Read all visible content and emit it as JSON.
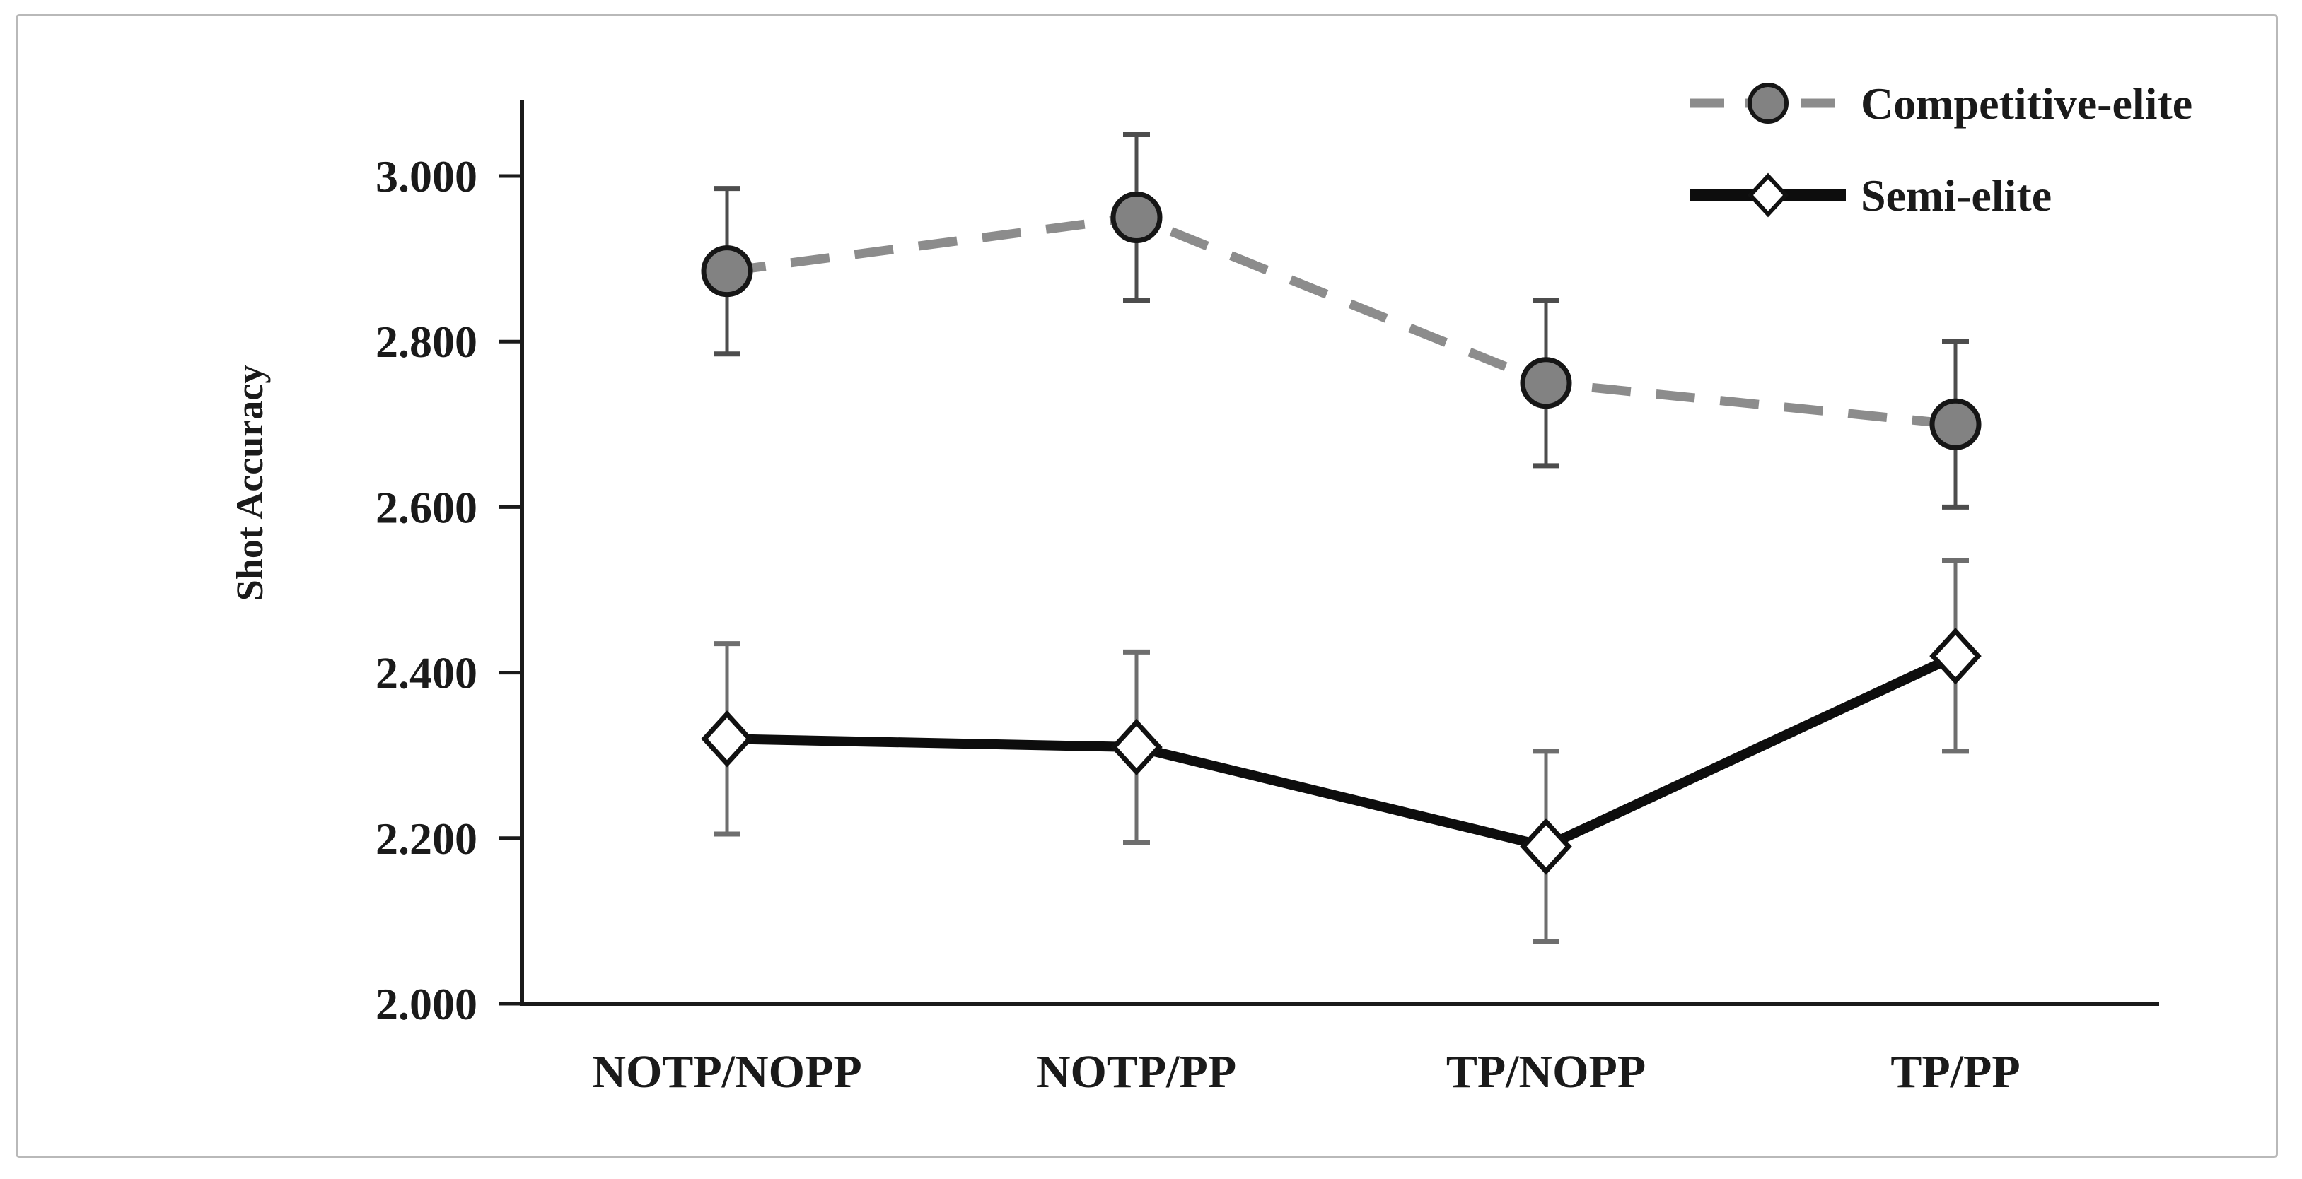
{
  "figure": {
    "background": "#ffffff",
    "border_color": "#b9b9b9"
  },
  "chart_data": {
    "type": "line",
    "title": "",
    "xlabel": "",
    "ylabel": "Shot Accuracy",
    "categories": [
      "NOTP/NOPP",
      "NOTP/PP",
      "TP/NOPP",
      "TP/PP"
    ],
    "series": [
      {
        "name": "Competitive-elite",
        "values": [
          2.885,
          2.95,
          2.75,
          2.7
        ],
        "error": [
          0.1,
          0.1,
          0.1,
          0.1
        ],
        "line_style": "dashed",
        "line_color": "#8c8c8c",
        "marker": "circle",
        "marker_fill": "#828282",
        "marker_stroke": "#161616",
        "error_color": "#4d4d4d"
      },
      {
        "name": "Semi-elite",
        "values": [
          2.32,
          2.31,
          2.19,
          2.42
        ],
        "error": [
          0.115,
          0.115,
          0.115,
          0.115
        ],
        "line_style": "solid",
        "line_color": "#0d0d0d",
        "marker": "diamond",
        "marker_fill": "#ffffff",
        "marker_stroke": "#111111",
        "error_color": "#6e6e6e"
      }
    ],
    "ylim": [
      2.0,
      3.0
    ],
    "ytick_step": 0.2,
    "ytick_labels": [
      "2.000",
      "2.200",
      "2.400",
      "2.600",
      "2.800",
      "3.000"
    ],
    "grid": false,
    "legend_position": "top-right",
    "axis_color": "#1a1a1a",
    "text_color": "#1a1a1a"
  }
}
